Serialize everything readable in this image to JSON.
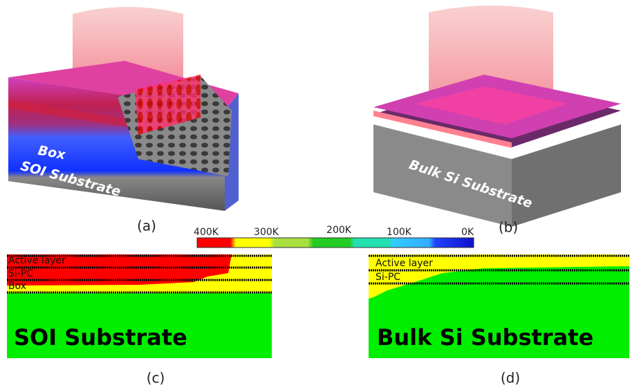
{
  "panel_a": {
    "tag": "(a)",
    "box_label": "Box",
    "substrate_label": "SOI Substrate"
  },
  "panel_b": {
    "tag": "(b)",
    "substrate_label": "Bulk Si Substrate"
  },
  "colorbar": {
    "labels": [
      "400K",
      "300K",
      "200K",
      "100K",
      "0K"
    ]
  },
  "panel_c": {
    "tag": "(c)",
    "layers": [
      "Active layer",
      "Si-PC",
      "Box"
    ],
    "substrate_label": "SOI Substrate"
  },
  "panel_d": {
    "tag": "(d)",
    "layers": [
      "Active layer",
      "Si-PC"
    ],
    "substrate_label": "Bulk Si Substrate"
  }
}
